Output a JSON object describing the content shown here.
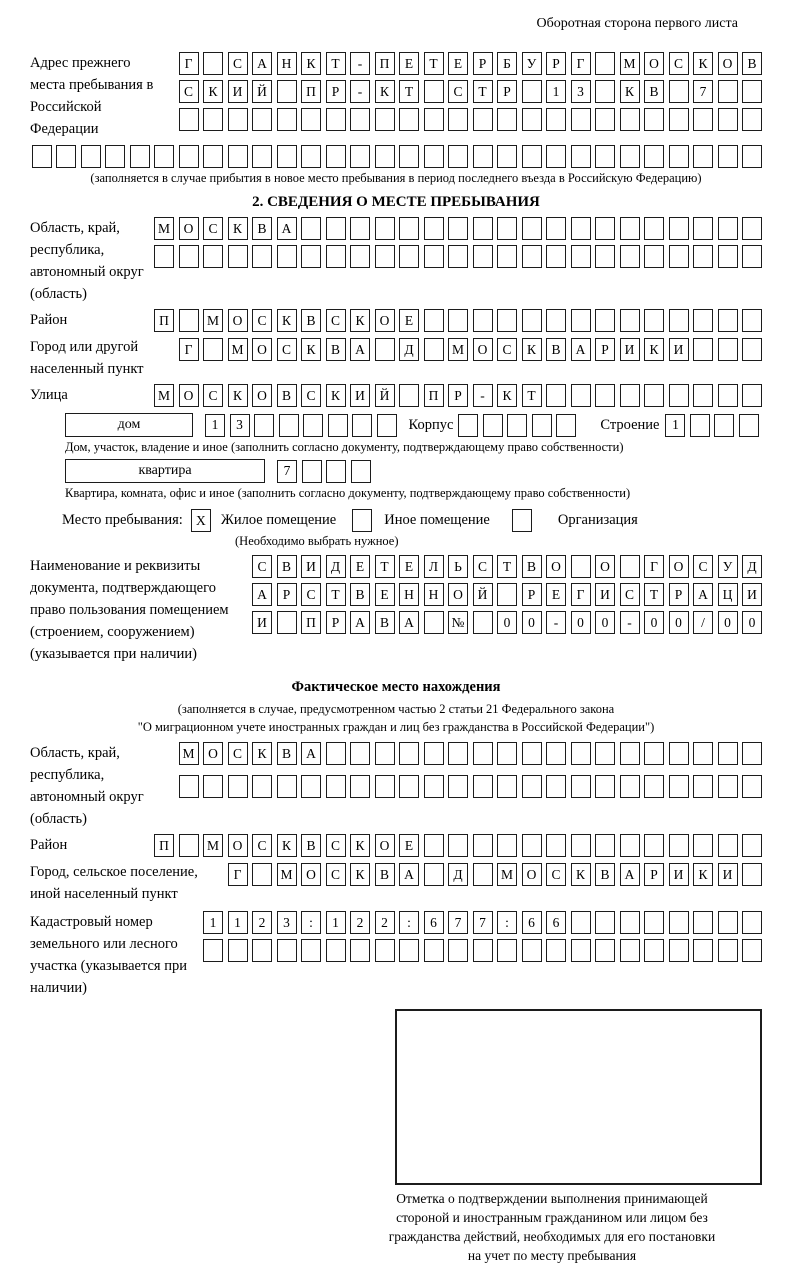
{
  "colors": {
    "ink": "#000000",
    "background": "#ffffff"
  },
  "header": {
    "backside_note": "Оборотная сторона первого листа"
  },
  "prev_address": {
    "label": "Адрес прежнего места пребывания в Российской Федерации",
    "rows": [
      {
        "t": "Г САНКТ-ПЕТЕРБУРГ МОСКОВ",
        "n": 24
      },
      {
        "t": "СКИЙ ПР-КТ СТР 13 КВ 7",
        "n": 24
      },
      {
        "t": "",
        "n": 24
      },
      {
        "t": "",
        "n": 30
      }
    ],
    "note": "(заполняется в случае прибытия в новое место пребывания в период последнего въезда в Российскую Федерацию)"
  },
  "section2": {
    "title": "2. СВЕДЕНИЯ О МЕСТЕ ПРЕБЫВАНИЯ",
    "region": {
      "label": "Область, край, республика, автономный округ (область)",
      "rows": [
        {
          "t": "МОСКВА",
          "n": 25
        },
        {
          "t": "",
          "n": 25
        }
      ]
    },
    "district": {
      "label": "Район",
      "cells": {
        "t": "П МОСКВСКОЕ",
        "n": 25
      }
    },
    "city": {
      "label": "Город или другой населенный пункт",
      "cells": {
        "t": "Г МОСКВА Д МОСКВАРИКИ",
        "n": 24
      }
    },
    "street": {
      "label": "Улица",
      "cells": {
        "t": "МОСКОВСКИЙ ПР-КТ",
        "n": 25
      }
    },
    "house_line": {
      "house_box_label": "дом",
      "house_cells": {
        "t": "13",
        "n": 8
      },
      "korpus_label": "Корпус",
      "korpus_cells": {
        "t": "",
        "n": 5
      },
      "stroenie_label": "Строение",
      "stroenie_cells": {
        "t": "1",
        "n": 4
      }
    },
    "house_note": "Дом, участок, владение и иное (заполнить согласно документу, подтверждающему право собственности)",
    "apartment_line": {
      "apt_box_label": "квартира",
      "apt_cells": {
        "t": "7",
        "n": 4
      }
    },
    "apartment_note": "Квартира, комната, офис и иное (заполнить согласно документу, подтверждающему право собственности)",
    "stay_type": {
      "label": "Место пребывания:",
      "options": [
        {
          "label": "Жилое помещение",
          "t": "X",
          "n": 1
        },
        {
          "label": "Иное помещение",
          "t": "",
          "n": 1
        },
        {
          "label": "Организация",
          "t": "",
          "n": 1
        }
      ],
      "note": "(Необходимо выбрать нужное)"
    },
    "document": {
      "label": "Наименование и реквизиты документа, подтверждающего право пользования помещением (строением, сооружением) (указывается при наличии)",
      "rows": [
        {
          "t": "СВИДЕТЕЛЬСТВО О ГОСУД",
          "n": 21
        },
        {
          "t": "АРСТВЕННОЙ РЕГИСТРАЦИ",
          "n": 21
        },
        {
          "t": "И ПРАВА № 00-00-00/000",
          "n": 21
        }
      ]
    }
  },
  "actual_location": {
    "title": "Фактическое место нахождения",
    "note_line1": "(заполняется в случае, предусмотренном частью 2 статьи 21 Федерального закона",
    "note_line2": "\"О миграционном учете иностранных граждан и лиц без гражданства в Российской Федерации\")",
    "region": {
      "label": "Область, край, республика, автономный округ (область)",
      "rows": [
        {
          "t": "МОСКВА",
          "n": 24
        },
        {
          "t": "",
          "n": 24
        }
      ]
    },
    "district": {
      "label": "Район",
      "cells": {
        "t": "П МОСКВСКОЕ",
        "n": 25
      }
    },
    "city": {
      "label": "Город, сельское поселение, иной населенный пункт",
      "cells": {
        "t": "Г МОСКВА Д МОСКВАРИКИ",
        "n": 22
      }
    },
    "cadastral": {
      "label": "Кадастровый номер земельного или лесного участка (указывается при наличии)",
      "rows": [
        {
          "t": "1123:122:677:66",
          "n": 23
        },
        {
          "t": "",
          "n": 23
        }
      ]
    }
  },
  "stamp": {
    "caption_lines": [
      "Отметка о подтверждении выполнения принимающей",
      "стороной и иностранным гражданином или лицом без",
      "гражданства действий, необходимых для его постановки",
      "на учет по месту пребывания"
    ]
  }
}
